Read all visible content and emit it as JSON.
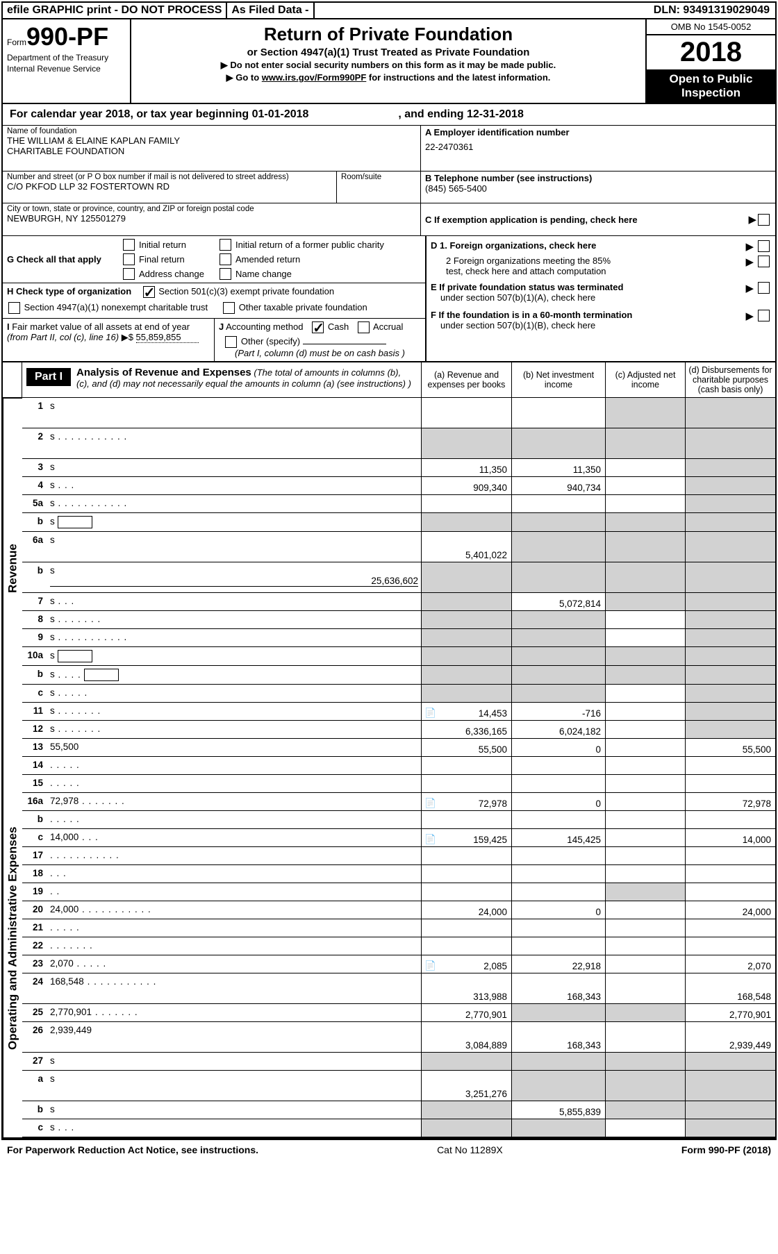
{
  "top": {
    "efile": "efile GRAPHIC print - DO NOT PROCESS",
    "asfiled_label": "As Filed Data -",
    "dln": "DLN: 93491319029049"
  },
  "header": {
    "form_prefix": "Form",
    "form_number": "990-PF",
    "dept1": "Department of the Treasury",
    "dept2": "Internal Revenue Service",
    "title": "Return of Private Foundation",
    "subtitle": "or Section 4947(a)(1) Trust Treated as Private Foundation",
    "instr1": "▶ Do not enter social security numbers on this form as it may be made public.",
    "instr2_prefix": "▶ Go to ",
    "instr2_link": "www.irs.gov/Form990PF",
    "instr2_suffix": " for instructions and the latest information.",
    "omb": "OMB No 1545-0052",
    "year": "2018",
    "open1": "Open to Public",
    "open2": "Inspection"
  },
  "calendar": {
    "line": "For calendar year 2018, or tax year beginning 01-01-2018",
    "mid": ", and ending 12-31-2018"
  },
  "entity": {
    "name_lbl": "Name of foundation",
    "name1": "THE WILLIAM & ELAINE KAPLAN FAMILY",
    "name2": "CHARITABLE FOUNDATION",
    "addr_lbl": "Number and street (or P O  box number if mail is not delivered to street address)",
    "room_lbl": "Room/suite",
    "addr": "C/O PKFOD LLP 32 FOSTERTOWN RD",
    "city_lbl": "City or town, state or province, country, and ZIP or foreign postal code",
    "city": "NEWBURGH, NY  125501279",
    "a_lbl": "A Employer identification number",
    "a_val": "22-2470361",
    "b_lbl": "B Telephone number (see instructions)",
    "b_val": "(845) 565-5400",
    "c_lbl": "C  If exemption application is pending, check here"
  },
  "g": {
    "label": "G Check all that apply",
    "c1": "Initial return",
    "c2": "Initial return of a former public charity",
    "c3": "Final return",
    "c4": "Amended return",
    "c5": "Address change",
    "c6": "Name change"
  },
  "h": {
    "label": "H Check type of organization",
    "c1": "Section 501(c)(3) exempt private foundation",
    "c2": "Section 4947(a)(1) nonexempt charitable trust",
    "c3": "Other taxable private foundation"
  },
  "i": {
    "label": "I Fair market value of all assets at end of year (from Part II, col  (c), line 16) ▶$ ",
    "val": "55,859,855"
  },
  "j": {
    "label": "J Accounting method",
    "c1": "Cash",
    "c2": "Accrual",
    "c3": "Other (specify)",
    "note": "(Part I, column (d) must be on cash basis )"
  },
  "d": {
    "d1": "D 1. Foreign organizations, check here",
    "d2a": "2  Foreign organizations meeting the 85%",
    "d2b": "test, check here and attach computation",
    "e1": "E  If private foundation status was terminated",
    "e2": "under section 507(b)(1)(A), check here",
    "f1": "F  If the foundation is in a 60-month termination",
    "f2": "under section 507(b)(1)(B), check here"
  },
  "part1": {
    "tag": "Part I",
    "title": "Analysis of Revenue and Expenses",
    "title_note": " (The total of amounts in columns (b), (c), and (d) may not necessarily equal the amounts in column (a) (see instructions) )",
    "cola": "(a)   Revenue and expenses per books",
    "colb": "(b)  Net investment income",
    "colc": "(c)  Adjusted net income",
    "cold": "(d)  Disbursements for charitable purposes (cash basis only)",
    "revenue_tag": "Revenue",
    "expense_tag": "Operating and Administrative Expenses"
  },
  "rows": [
    {
      "n": "1",
      "d": "s",
      "a": "",
      "b": "",
      "c": "s",
      "h": 1
    },
    {
      "n": "2",
      "d": "s",
      "a": "s",
      "b": "s",
      "c": "s",
      "dots": true,
      "h": 1
    },
    {
      "n": "3",
      "d": "s",
      "a": "11,350",
      "b": "11,350",
      "c": ""
    },
    {
      "n": "4",
      "d": "s",
      "a": "909,340",
      "b": "940,734",
      "c": "",
      "dots3": true
    },
    {
      "n": "5a",
      "d": "s",
      "a": "",
      "b": "",
      "c": "",
      "dots": true
    },
    {
      "n": "b",
      "d": "s",
      "a": "s",
      "b": "s",
      "c": "s",
      "box": true
    },
    {
      "n": "6a",
      "d": "s",
      "a": "5,401,022",
      "b": "s",
      "c": "s",
      "h": 1
    },
    {
      "n": "b",
      "d": "s",
      "a": "s",
      "b": "s",
      "c": "s",
      "h": 1,
      "tail": "25,636,602"
    },
    {
      "n": "7",
      "d": "s",
      "a": "s",
      "b": "5,072,814",
      "c": "s",
      "dots3": true
    },
    {
      "n": "8",
      "d": "s",
      "a": "s",
      "b": "s",
      "c": "",
      "dots7": true
    },
    {
      "n": "9",
      "d": "s",
      "a": "s",
      "b": "s",
      "c": "",
      "dots": true
    },
    {
      "n": "10a",
      "d": "s",
      "a": "s",
      "b": "s",
      "c": "s",
      "box": true
    },
    {
      "n": "b",
      "d": "s",
      "a": "s",
      "b": "s",
      "c": "s",
      "dots4": true,
      "box": true
    },
    {
      "n": "c",
      "d": "s",
      "a": "s",
      "b": "s",
      "c": "",
      "dots5": true
    },
    {
      "n": "11",
      "d": "s",
      "a": "14,453",
      "b": "-716",
      "c": "",
      "dots7": true,
      "icon": true
    },
    {
      "n": "12",
      "d": "s",
      "a": "6,336,165",
      "b": "6,024,182",
      "c": "",
      "dots7": true
    }
  ],
  "exprows": [
    {
      "n": "13",
      "d": "55,500",
      "a": "55,500",
      "b": "0",
      "c": ""
    },
    {
      "n": "14",
      "d": "",
      "a": "",
      "b": "",
      "c": "",
      "dots5": true
    },
    {
      "n": "15",
      "d": "",
      "a": "",
      "b": "",
      "c": "",
      "dots5": true
    },
    {
      "n": "16a",
      "d": "72,978",
      "a": "72,978",
      "b": "0",
      "c": "",
      "dots7": true,
      "icon": true
    },
    {
      "n": "b",
      "d": "",
      "a": "",
      "b": "",
      "c": "",
      "dots5": true
    },
    {
      "n": "c",
      "d": "14,000",
      "a": "159,425",
      "b": "145,425",
      "c": "",
      "dots3": true,
      "icon": true
    },
    {
      "n": "17",
      "d": "",
      "a": "",
      "b": "",
      "c": "",
      "dots": true
    },
    {
      "n": "18",
      "d": "",
      "a": "",
      "b": "",
      "c": "",
      "dots3": true
    },
    {
      "n": "19",
      "d": "",
      "a": "",
      "b": "",
      "c": "s",
      "dots2": true
    },
    {
      "n": "20",
      "d": "24,000",
      "a": "24,000",
      "b": "0",
      "c": "",
      "dots": true
    },
    {
      "n": "21",
      "d": "",
      "a": "",
      "b": "",
      "c": "",
      "dots5": true
    },
    {
      "n": "22",
      "d": "",
      "a": "",
      "b": "",
      "c": "",
      "dots7": true
    },
    {
      "n": "23",
      "d": "2,070",
      "a": "2,085",
      "b": "22,918",
      "c": "",
      "dots5": true,
      "icon": true
    },
    {
      "n": "24",
      "d": "168,548",
      "a": "313,988",
      "b": "168,343",
      "c": "",
      "dots": true,
      "h": 1
    },
    {
      "n": "25",
      "d": "2,770,901",
      "a": "2,770,901",
      "b": "s",
      "c": "s",
      "dots7": true
    },
    {
      "n": "26",
      "d": "2,939,449",
      "a": "3,084,889",
      "b": "168,343",
      "c": "",
      "h": 1
    },
    {
      "n": "27",
      "d": "s",
      "a": "s",
      "b": "s",
      "c": "s"
    },
    {
      "n": "a",
      "d": "s",
      "a": "3,251,276",
      "b": "s",
      "c": "s",
      "h": 1
    },
    {
      "n": "b",
      "d": "s",
      "a": "s",
      "b": "5,855,839",
      "c": "s"
    },
    {
      "n": "c",
      "d": "s",
      "a": "s",
      "b": "s",
      "c": "",
      "dots3": true
    }
  ],
  "footer": {
    "left": "For Paperwork Reduction Act Notice, see instructions.",
    "mid": "Cat  No  11289X",
    "right": "Form 990-PF (2018)"
  },
  "colors": {
    "shade": "#d2d2d2"
  }
}
